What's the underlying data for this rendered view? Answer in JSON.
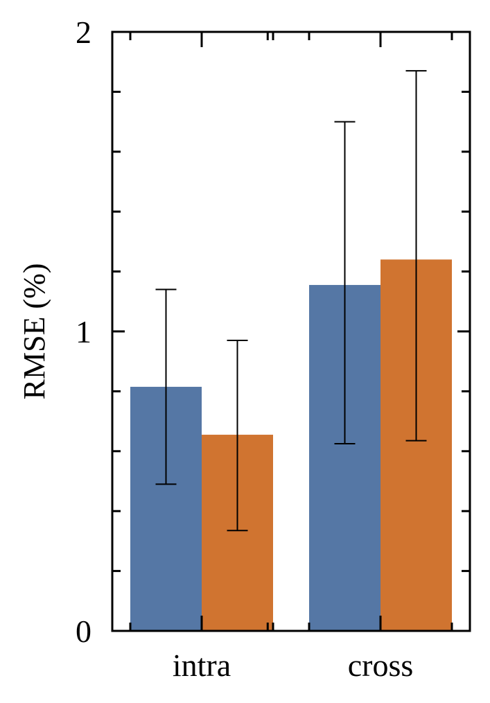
{
  "chart_data": {
    "type": "bar",
    "categories": [
      "intra",
      "cross"
    ],
    "series": [
      {
        "color": "#5577a5",
        "values": [
          0.815,
          1.155
        ],
        "error_low": [
          0.49,
          0.625
        ],
        "error_high": [
          1.14,
          1.7
        ]
      },
      {
        "color": "#d07430",
        "values": [
          0.655,
          1.24
        ],
        "error_low": [
          0.335,
          0.635
        ],
        "error_high": [
          0.97,
          1.87
        ]
      }
    ],
    "ylabel": "RMSE (%)",
    "ylim": [
      0,
      2
    ],
    "yticks": [
      "0",
      "1",
      "2"
    ],
    "grid": false
  }
}
